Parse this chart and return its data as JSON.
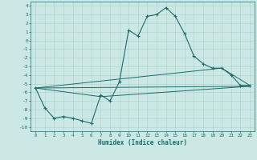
{
  "xlabel": "Humidex (Indice chaleur)",
  "xlim": [
    -0.5,
    23.5
  ],
  "ylim": [
    -10.5,
    4.5
  ],
  "xticks": [
    0,
    1,
    2,
    3,
    4,
    5,
    6,
    7,
    8,
    9,
    10,
    11,
    12,
    13,
    14,
    15,
    16,
    17,
    18,
    19,
    20,
    21,
    22,
    23
  ],
  "yticks": [
    4,
    3,
    2,
    1,
    0,
    -1,
    -2,
    -3,
    -4,
    -5,
    -6,
    -7,
    -8,
    -9,
    -10
  ],
  "background_color": "#cce8e5",
  "grid_color": "#aacfcc",
  "line_color": "#1a6b6b",
  "main_line": [
    [
      0,
      -5.5
    ],
    [
      1,
      -7.8
    ],
    [
      2,
      -9.0
    ],
    [
      3,
      -8.8
    ],
    [
      4,
      -9.0
    ],
    [
      5,
      -9.3
    ],
    [
      6,
      -9.6
    ],
    [
      7,
      -6.3
    ],
    [
      8,
      -7.0
    ],
    [
      9,
      -4.8
    ],
    [
      10,
      1.2
    ],
    [
      11,
      0.5
    ],
    [
      12,
      2.8
    ],
    [
      13,
      3.0
    ],
    [
      14,
      3.8
    ],
    [
      15,
      2.8
    ],
    [
      16,
      0.8
    ],
    [
      17,
      -1.8
    ],
    [
      18,
      -2.7
    ],
    [
      19,
      -3.2
    ],
    [
      20,
      -3.2
    ],
    [
      21,
      -4.0
    ],
    [
      22,
      -5.2
    ],
    [
      23,
      -5.2
    ]
  ],
  "line2": [
    [
      0,
      -5.5
    ],
    [
      23,
      -5.3
    ]
  ],
  "line3": [
    [
      0,
      -5.5
    ],
    [
      20,
      -3.2
    ],
    [
      23,
      -5.2
    ]
  ],
  "line4": [
    [
      0,
      -5.5
    ],
    [
      7,
      -6.5
    ],
    [
      23,
      -5.3
    ]
  ]
}
